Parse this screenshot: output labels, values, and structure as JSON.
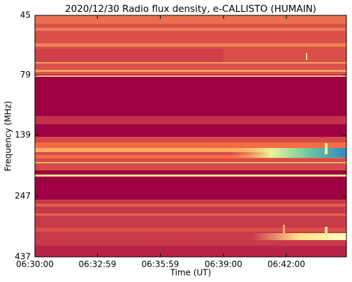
{
  "chart_data": {
    "type": "spectrogram",
    "title": "2020/12/30  Radio flux density, e-CALLISTO (HUMAIN)",
    "x_label": "Time (UT)",
    "y_label": "Frequency (MHz)",
    "xlim": [
      "06:30:00",
      "06:44:52"
    ],
    "xticks": [
      "06:30:00",
      "06:32:59",
      "06:35:59",
      "06:39:00",
      "06:42:00"
    ],
    "ylim": [
      437,
      45
    ],
    "yticks": [
      45,
      79,
      139,
      247,
      437
    ],
    "log_y": true
  }
}
